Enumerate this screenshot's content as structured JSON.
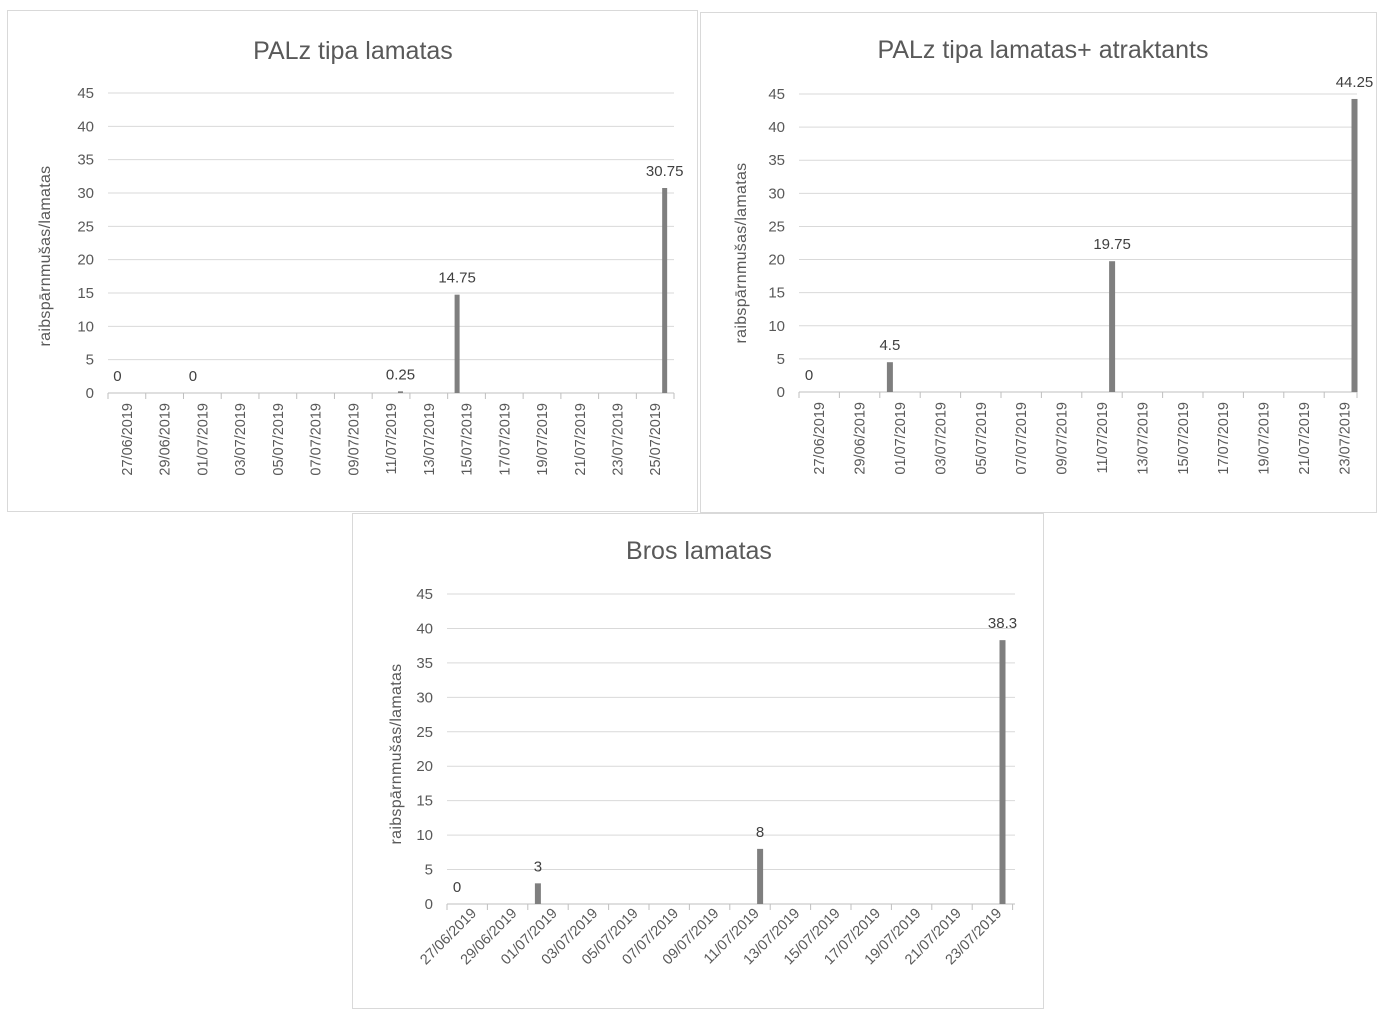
{
  "colors": {
    "bar": "#7f7f7f",
    "grid": "#d9d9d9",
    "text": "#595959"
  },
  "chart_data": [
    {
      "type": "bar",
      "title": "PALz tipa lamatas",
      "ylabel": "raibspārnmušas/lamatas",
      "xlabel": "",
      "ylim": [
        0,
        45
      ],
      "yticks": [
        0,
        5,
        10,
        15,
        20,
        25,
        30,
        35,
        40,
        45
      ],
      "grid": true,
      "x_tick_labels": [
        "27/06/2019",
        "29/06/2019",
        "01/07/2019",
        "03/07/2019",
        "05/07/2019",
        "07/07/2019",
        "09/07/2019",
        "11/07/2019",
        "13/07/2019",
        "15/07/2019",
        "17/07/2019",
        "19/07/2019",
        "21/07/2019",
        "23/07/2019",
        "25/07/2019"
      ],
      "points": [
        {
          "date": "27/06/2019",
          "value": 0,
          "label": "0"
        },
        {
          "date": "01/07/2019",
          "value": 0,
          "label": "0"
        },
        {
          "date": "12/07/2019",
          "value": 0.25,
          "label": "0.25"
        },
        {
          "date": "15/07/2019",
          "value": 14.75,
          "label": "14.75"
        },
        {
          "date": "26/07/2019",
          "value": 30.75,
          "label": "30.75"
        }
      ]
    },
    {
      "type": "bar",
      "title": "PALz tipa lamatas+ atraktants",
      "ylabel": "raibspārnmušas/lamatas",
      "xlabel": "",
      "ylim": [
        0,
        45
      ],
      "yticks": [
        0,
        5,
        10,
        15,
        20,
        25,
        30,
        35,
        40,
        45
      ],
      "grid": true,
      "x_tick_labels": [
        "27/06/2019",
        "29/06/2019",
        "01/07/2019",
        "03/07/2019",
        "05/07/2019",
        "07/07/2019",
        "09/07/2019",
        "11/07/2019",
        "13/07/2019",
        "15/07/2019",
        "17/07/2019",
        "19/07/2019",
        "21/07/2019",
        "23/07/2019"
      ],
      "points": [
        {
          "date": "27/06/2019",
          "value": 0,
          "label": "0"
        },
        {
          "date": "01/07/2019",
          "value": 4.5,
          "label": "4.5"
        },
        {
          "date": "12/07/2019",
          "value": 19.75,
          "label": "19.75"
        },
        {
          "date": "24/07/2019",
          "value": 44.25,
          "label": "44.25"
        }
      ]
    },
    {
      "type": "bar",
      "title": "Bros lamatas",
      "ylabel": "raibspārnmušas/lamatas",
      "xlabel": "",
      "ylim": [
        0,
        45
      ],
      "yticks": [
        0,
        5,
        10,
        15,
        20,
        25,
        30,
        35,
        40,
        45
      ],
      "grid": true,
      "x_tick_labels": [
        "27/06/2019",
        "29/06/2019",
        "01/07/2019",
        "03/07/2019",
        "05/07/2019",
        "07/07/2019",
        "09/07/2019",
        "11/07/2019",
        "13/07/2019",
        "15/07/2019",
        "17/07/2019",
        "19/07/2019",
        "21/07/2019",
        "23/07/2019"
      ],
      "points": [
        {
          "date": "27/06/2019",
          "value": 0,
          "label": "0"
        },
        {
          "date": "01/07/2019",
          "value": 3,
          "label": "3"
        },
        {
          "date": "12/07/2019",
          "value": 8,
          "label": "8"
        },
        {
          "date": "24/07/2019",
          "value": 38.3,
          "label": "38.3"
        }
      ]
    }
  ]
}
